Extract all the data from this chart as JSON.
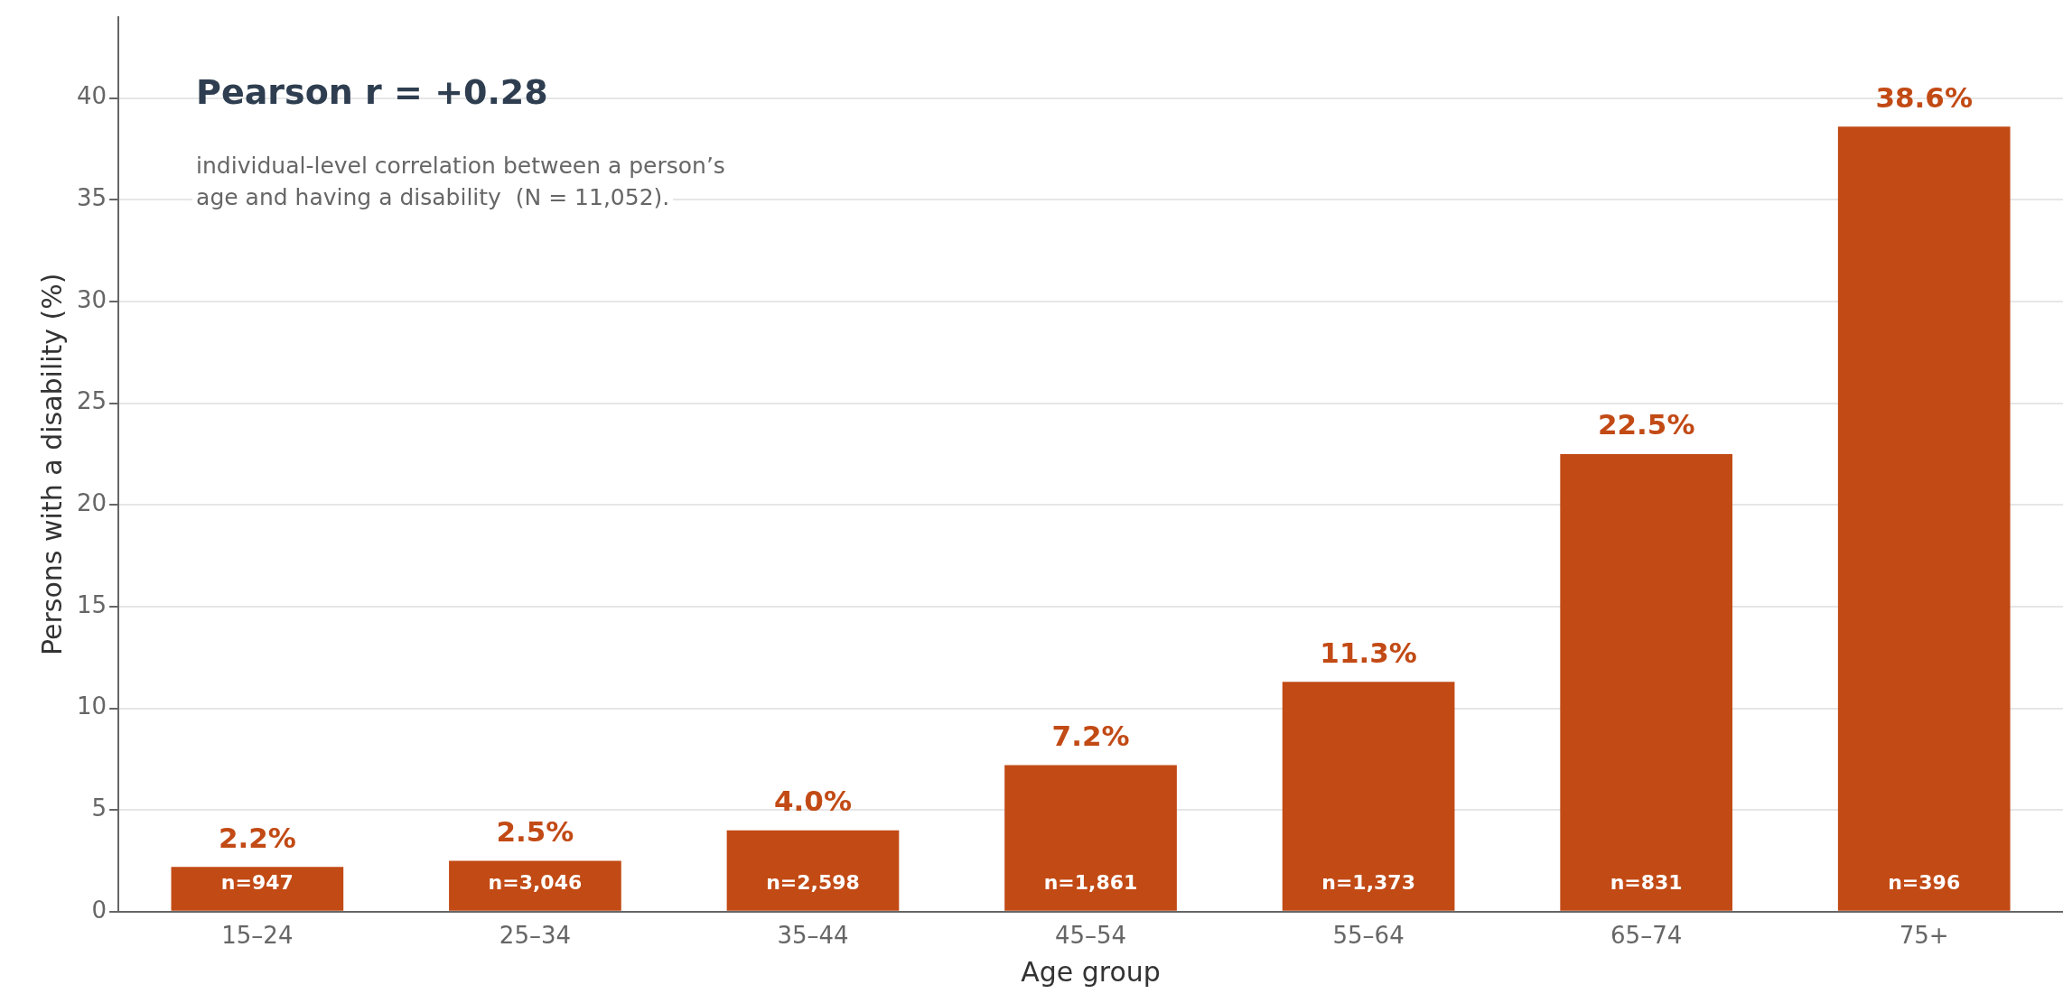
{
  "chart_data": {
    "type": "bar",
    "title": "Pearson r = +0.28",
    "subtitle": "individual-level correlation between a person’s\nage and having a disability  (N = 11,052).",
    "xlabel": "Age group",
    "ylabel": "Persons with a disability (%)",
    "categories": [
      "15–24",
      "25–34",
      "35–44",
      "45–54",
      "55–64",
      "65–74",
      "75+"
    ],
    "values": [
      2.2,
      2.5,
      4.0,
      7.2,
      11.3,
      22.5,
      38.6
    ],
    "value_labels": [
      "2.2%",
      "2.5%",
      "4.0%",
      "7.2%",
      "11.3%",
      "22.5%",
      "38.6%"
    ],
    "color": "#c24a15",
    "annotations": [
      {
        "text": "n=947",
        "x": "15–24",
        "y": 0
      },
      {
        "text": "n=3,046",
        "x": "25–34",
        "y": 0
      },
      {
        "text": "n=2,598",
        "x": "35–44",
        "y": 0
      },
      {
        "text": "n=1,861",
        "x": "45–54",
        "y": 0
      },
      {
        "text": "n=1,373",
        "x": "55–64",
        "y": 0
      },
      {
        "text": "n=831",
        "x": "65–74",
        "y": 0
      },
      {
        "text": "n=396",
        "x": "75+",
        "y": 0
      }
    ],
    "ylim": [
      0,
      44
    ],
    "yticks": [
      0,
      5,
      10,
      15,
      20,
      25,
      30,
      35,
      40
    ],
    "grid": "y"
  }
}
